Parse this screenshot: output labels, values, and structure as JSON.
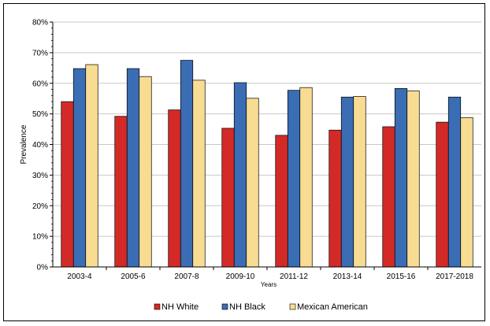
{
  "chart_data": {
    "type": "bar",
    "categories": [
      "2003-4",
      "2005-6",
      "2007-8",
      "2009-10",
      "2011-12",
      "2013-14",
      "2015-16",
      "2017-2018"
    ],
    "series": [
      {
        "name": "NH White",
        "color": "#d42a27",
        "values": [
          54.0,
          49.2,
          51.3,
          45.3,
          43.0,
          44.7,
          45.8,
          47.3
        ]
      },
      {
        "name": "NH Black",
        "color": "#3a6db4",
        "values": [
          64.8,
          64.8,
          67.5,
          60.2,
          57.7,
          55.5,
          58.3,
          55.5
        ]
      },
      {
        "name": "Mexican American",
        "color": "#f8dc92",
        "values": [
          66.1,
          62.2,
          61.0,
          55.1,
          58.6,
          55.7,
          57.5,
          48.8
        ]
      }
    ],
    "xlabel": "Years",
    "ylabel": "Prevalence",
    "ylim": [
      0,
      80
    ],
    "yticks": [
      "0%",
      "10%",
      "20%",
      "30%",
      "40%",
      "50%",
      "60%",
      "70%",
      "80%"
    ],
    "grid": true,
    "legend_position": "bottom"
  }
}
